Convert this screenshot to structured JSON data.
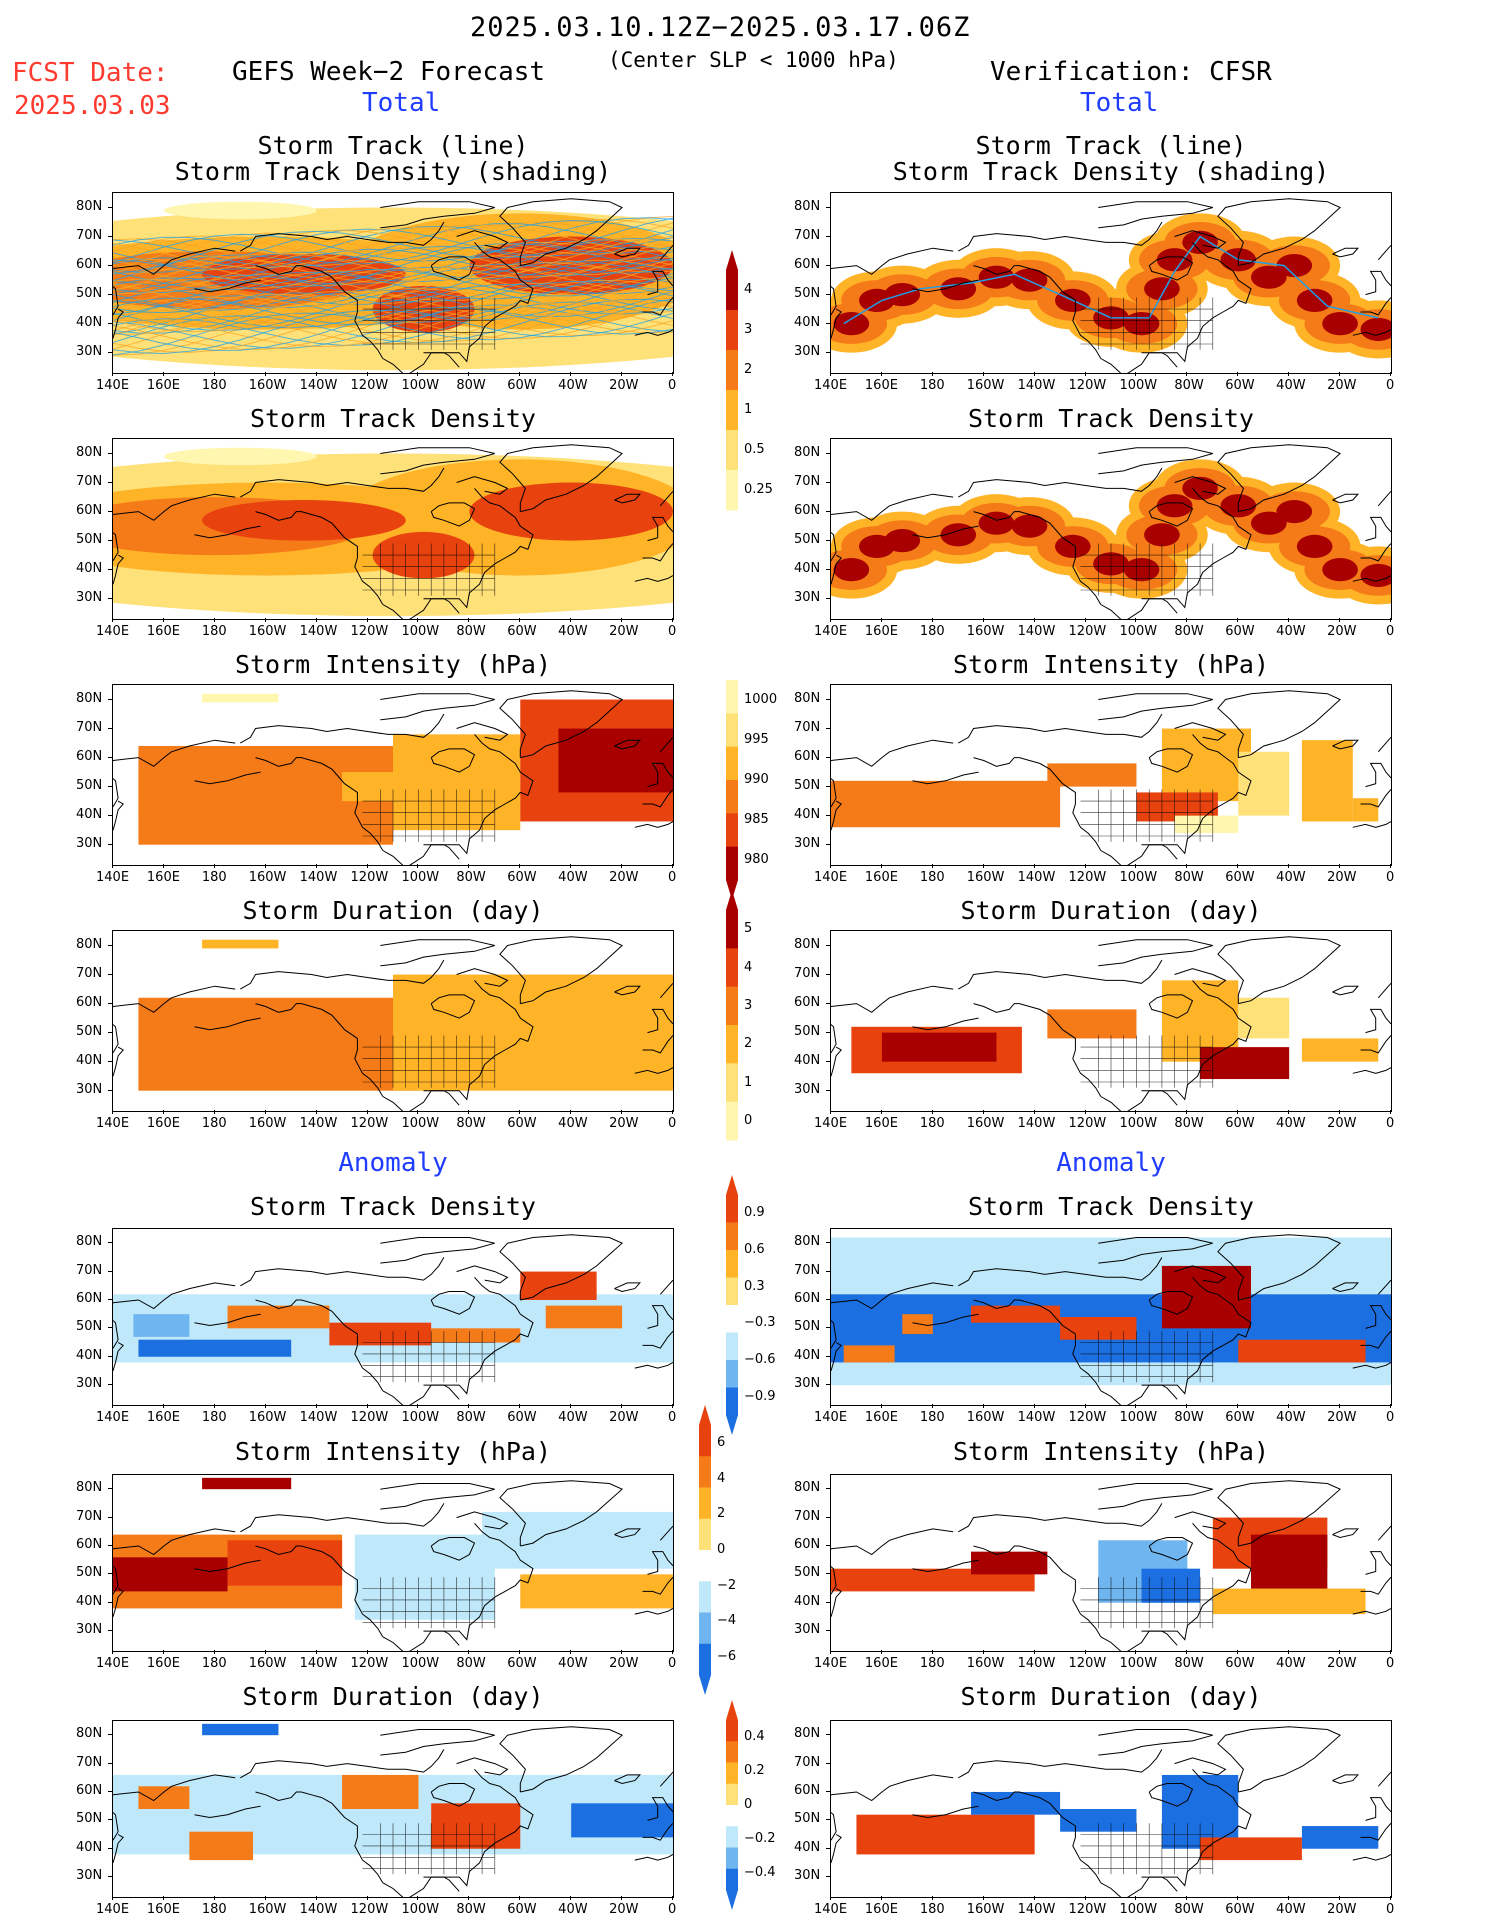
{
  "header": {
    "date_range": "2025.03.10.12Z−2025.03.17.06Z",
    "criterion": "(Center SLP < 1000 hPa)",
    "fcst_label": "FCST Date:",
    "fcst_date": "2025.03.03",
    "left_title": "GEFS Week−2 Forecast",
    "right_title": "Verification: CFSR",
    "total_label": "Total",
    "anomaly_label": "Anomaly"
  },
  "panel_titles": {
    "track_line": "Storm Track (line)",
    "track_shading": "Storm Track Density (shading)",
    "density": "Storm Track Density",
    "intensity": "Storm Intensity (hPa)",
    "duration": "Storm Duration (day)"
  },
  "axes": {
    "lat_ticks": [
      "80N",
      "70N",
      "60N",
      "50N",
      "40N",
      "30N"
    ],
    "lon_ticks": [
      "140E",
      "160E",
      "180",
      "160W",
      "140W",
      "120W",
      "100W",
      "80W",
      "60W",
      "40W",
      "20W",
      "0"
    ]
  },
  "colorbars": {
    "density_total": [
      "4",
      "3",
      "2",
      "1",
      "0.5",
      "0.25"
    ],
    "intensity_total": [
      "1000",
      "995",
      "990",
      "985",
      "980"
    ],
    "duration_total": [
      "5",
      "4",
      "3",
      "2",
      "1",
      "0"
    ],
    "density_anom": [
      "0.9",
      "0.6",
      "0.3",
      "−0.3",
      "−0.6",
      "−0.9"
    ],
    "intensity_anom": [
      "6",
      "4",
      "2",
      "0",
      "−2",
      "−4",
      "−6"
    ],
    "duration_anom": [
      "0.4",
      "0.2",
      "0",
      "−0.2",
      "−0.4"
    ]
  },
  "colors": {
    "warm_light": "#fff7b0",
    "warm_1": "#ffe17a",
    "warm_2": "#ffb428",
    "warm_3": "#f57a18",
    "warm_4": "#e8420e",
    "warm_5": "#a80000",
    "cool_1": "#bfe9fb",
    "cool_2": "#6fb5ef",
    "cool_3": "#1b6fe0",
    "track_blue": "#1fa0e8",
    "track_orange": "#f5a623"
  }
}
